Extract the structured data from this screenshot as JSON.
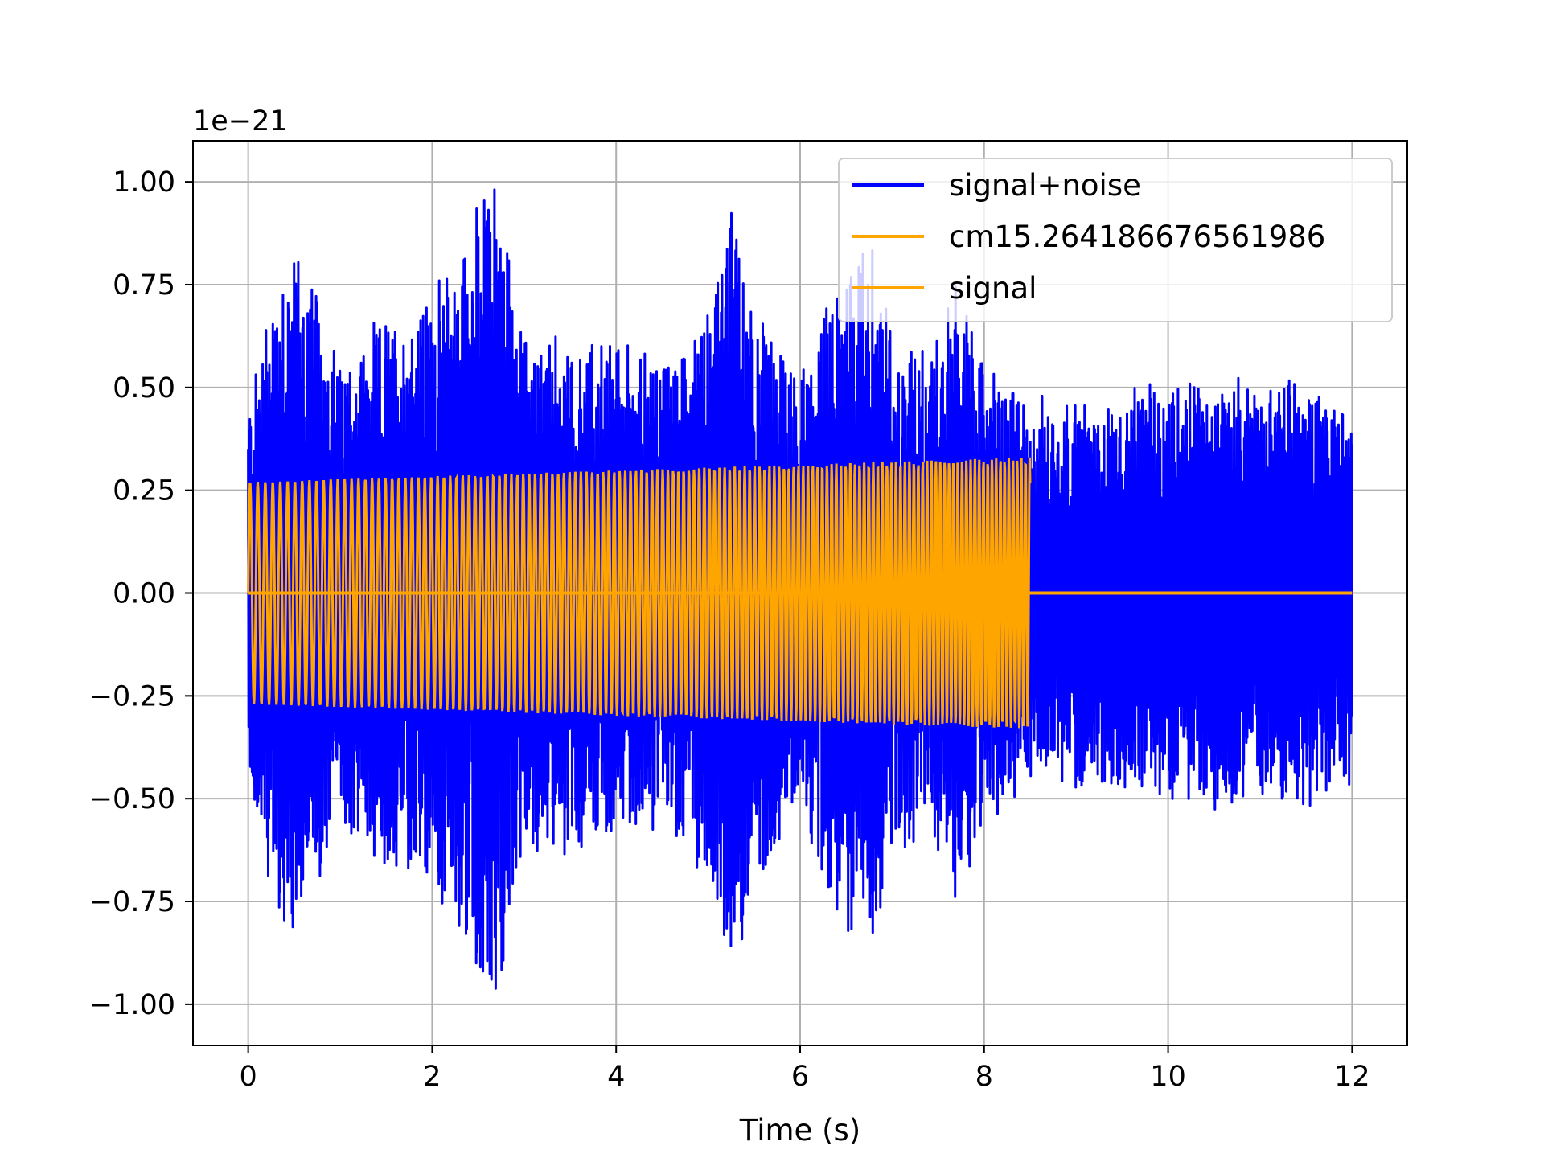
{
  "chart_data": {
    "type": "line",
    "title": "",
    "xlabel": "Time (s)",
    "ylabel": "",
    "offset_text": "1e−21",
    "xlim": [
      -0.6,
      12.6
    ],
    "ylim": [
      -1.1,
      1.1
    ],
    "grid": true,
    "legend_position": "top-right",
    "x_ticks": [
      0,
      2,
      4,
      6,
      8,
      10,
      12
    ],
    "x_tick_labels": [
      "0",
      "2",
      "4",
      "6",
      "8",
      "10",
      "12"
    ],
    "y_ticks": [
      1.0,
      0.75,
      0.5,
      0.25,
      0.0,
      -0.25,
      -0.5,
      -0.75,
      -1.0
    ],
    "y_tick_labels": [
      "1.00",
      "0.75",
      "0.50",
      "0.25",
      "0.00",
      "−0.25",
      "−0.50",
      "−0.75",
      "−1.00"
    ],
    "series": [
      {
        "name": "signal+noise",
        "color": "#0000ff",
        "description_values": "noise-like oscillation spanning t=0 to 12 s, envelope about ±0.3 to ±1.0 (x1e-21)",
        "t_range": [
          0,
          12
        ],
        "envelope": [
          [
            0.0,
            0.45
          ],
          [
            0.3,
            0.78
          ],
          [
            0.5,
            0.85
          ],
          [
            1.0,
            0.55
          ],
          [
            1.5,
            0.65
          ],
          [
            2.0,
            0.7
          ],
          [
            2.7,
            1.01
          ],
          [
            3.0,
            0.6
          ],
          [
            3.5,
            0.6
          ],
          [
            4.0,
            0.6
          ],
          [
            4.5,
            0.55
          ],
          [
            5.0,
            0.7
          ],
          [
            5.25,
            0.91
          ],
          [
            5.5,
            0.7
          ],
          [
            6.0,
            0.5
          ],
          [
            6.5,
            0.8
          ],
          [
            6.8,
            0.85
          ],
          [
            7.0,
            0.6
          ],
          [
            7.5,
            0.6
          ],
          [
            7.7,
            0.75
          ],
          [
            8.0,
            0.55
          ],
          [
            8.5,
            0.45
          ],
          [
            9.0,
            0.45
          ],
          [
            9.5,
            0.45
          ],
          [
            10.0,
            0.5
          ],
          [
            10.5,
            0.5
          ],
          [
            11.0,
            0.5
          ],
          [
            11.5,
            0.5
          ],
          [
            12.0,
            0.45
          ]
        ]
      },
      {
        "name": "cm15.264186676561986",
        "color": "#ffa500",
        "t_range": [
          0,
          8.5
        ],
        "amplitude_start": 0.27,
        "amplitude_end": 0.33
      },
      {
        "name": "signal",
        "color": "#ffa500",
        "t_range": [
          0,
          12
        ],
        "amplitude_start": 0.0,
        "amplitude_end": 0.0
      }
    ]
  }
}
